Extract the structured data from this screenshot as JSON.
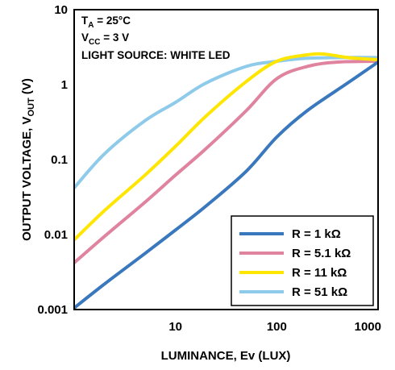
{
  "chart_data": {
    "type": "line",
    "x_scale": "log",
    "y_scale": "log",
    "xlim": [
      1,
      1000
    ],
    "ylim": [
      0.001,
      10
    ],
    "grid": false,
    "legend_position": "bottom-right",
    "xlabel": "LUMINANCE, Ev (LUX)",
    "ylabel": {
      "main": "OUTPUT VOLTAGE, V",
      "sub": "OUT",
      "suffix": " (V)"
    },
    "x_ticks": [
      {
        "value": 10,
        "label": "10"
      },
      {
        "value": 100,
        "label": "100"
      },
      {
        "value": 1000,
        "label": "1000"
      }
    ],
    "y_ticks": [
      {
        "value": 0.001,
        "label": "0.001"
      },
      {
        "value": 0.01,
        "label": "0.01"
      },
      {
        "value": 0.1,
        "label": "0.1"
      },
      {
        "value": 1,
        "label": "1"
      },
      {
        "value": 10,
        "label": "10"
      }
    ],
    "conditions": [
      {
        "main": "T",
        "sub": "A",
        "rest": " = 25°C"
      },
      {
        "main": "V",
        "sub": "CC",
        "rest": " = 3 V"
      },
      {
        "main": "LIGHT SOURCE: WHITE LED",
        "sub": "",
        "rest": ""
      }
    ],
    "series": [
      {
        "name": "R = 1 kΩ",
        "color": "#3a78be",
        "points": [
          [
            1,
            0.00105
          ],
          [
            2,
            0.0022
          ],
          [
            5,
            0.0056
          ],
          [
            10,
            0.0115
          ],
          [
            20,
            0.024
          ],
          [
            50,
            0.07
          ],
          [
            100,
            0.2
          ],
          [
            200,
            0.45
          ],
          [
            500,
            1.05
          ],
          [
            1000,
            2.0
          ]
        ]
      },
      {
        "name": "R = 5.1 kΩ",
        "color": "#e0839f",
        "points": [
          [
            1,
            0.0042
          ],
          [
            2,
            0.0095
          ],
          [
            5,
            0.027
          ],
          [
            10,
            0.062
          ],
          [
            20,
            0.14
          ],
          [
            50,
            0.45
          ],
          [
            100,
            1.2
          ],
          [
            200,
            1.75
          ],
          [
            400,
            2.0
          ],
          [
            1000,
            2.05
          ]
        ]
      },
      {
        "name": "R = 11 kΩ",
        "color": "#ffe600",
        "points": [
          [
            1,
            0.0085
          ],
          [
            2,
            0.021
          ],
          [
            5,
            0.062
          ],
          [
            10,
            0.15
          ],
          [
            20,
            0.38
          ],
          [
            50,
            1.1
          ],
          [
            100,
            2.05
          ],
          [
            200,
            2.5
          ],
          [
            300,
            2.55
          ],
          [
            500,
            2.3
          ],
          [
            1000,
            2.15
          ]
        ]
      },
      {
        "name": "R = 51 kΩ",
        "color": "#8ecbea",
        "points": [
          [
            1,
            0.042
          ],
          [
            2,
            0.12
          ],
          [
            5,
            0.33
          ],
          [
            10,
            0.58
          ],
          [
            20,
            1.05
          ],
          [
            50,
            1.75
          ],
          [
            100,
            2.05
          ],
          [
            200,
            2.25
          ],
          [
            500,
            2.3
          ],
          [
            1000,
            2.3
          ]
        ]
      }
    ]
  }
}
